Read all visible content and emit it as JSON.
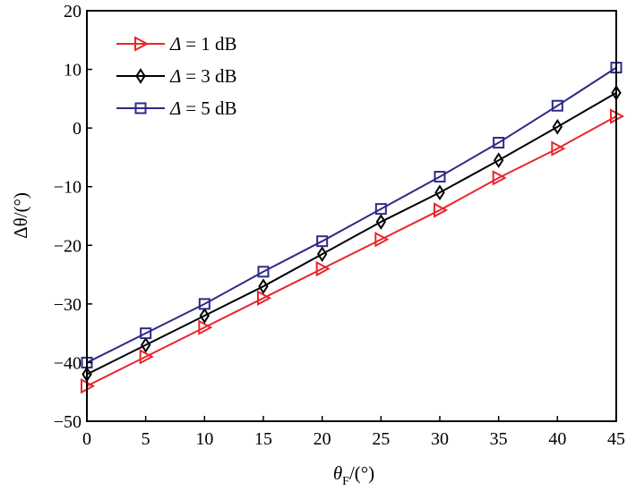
{
  "chart_data": {
    "type": "line",
    "title": "",
    "xlabel": "θF/(°)",
    "xlabel_main": "θ",
    "xlabel_sub": "F",
    "xlabel_unit": "/(°)",
    "ylabel": "Δθ/(°)",
    "xlim": [
      0,
      45
    ],
    "ylim": [
      -50,
      20
    ],
    "xticks": [
      0,
      5,
      10,
      15,
      20,
      25,
      30,
      35,
      40,
      45
    ],
    "yticks": [
      -50,
      -40,
      -30,
      -20,
      -10,
      0,
      10,
      20
    ],
    "xtick_labels": [
      "0",
      "5",
      "10",
      "15",
      "20",
      "25",
      "30",
      "35",
      "40",
      "45"
    ],
    "ytick_labels": [
      "−50",
      "−40",
      "−30",
      "−20",
      "−10",
      "0",
      "10",
      "20"
    ],
    "grid": false,
    "legend_position": "top-left",
    "x": [
      0,
      5,
      10,
      15,
      20,
      25,
      30,
      35,
      40,
      45
    ],
    "series": [
      {
        "name": "Δ = 1 dB",
        "legend_symbol": "Δ",
        "legend_rest": "= 1 dB",
        "color": "#e8262b",
        "marker": "triangle-right",
        "values": [
          -44,
          -39,
          -34,
          -29,
          -24,
          -19,
          -14,
          -8.5,
          -3.5,
          2
        ]
      },
      {
        "name": "Δ = 3 dB",
        "legend_symbol": "Δ",
        "legend_rest": "= 3 dB",
        "color": "#000000",
        "marker": "diamond",
        "values": [
          -42,
          -37,
          -32,
          -27,
          -21.5,
          -16,
          -11,
          -5.5,
          0.2,
          6
        ]
      },
      {
        "name": "Δ = 5 dB",
        "legend_symbol": "Δ",
        "legend_rest": "= 5 dB",
        "color": "#2e2a85",
        "marker": "square",
        "values": [
          -40,
          -35,
          -30,
          -24.5,
          -19.3,
          -13.8,
          -8.3,
          -2.5,
          3.8,
          10.3
        ]
      }
    ]
  }
}
